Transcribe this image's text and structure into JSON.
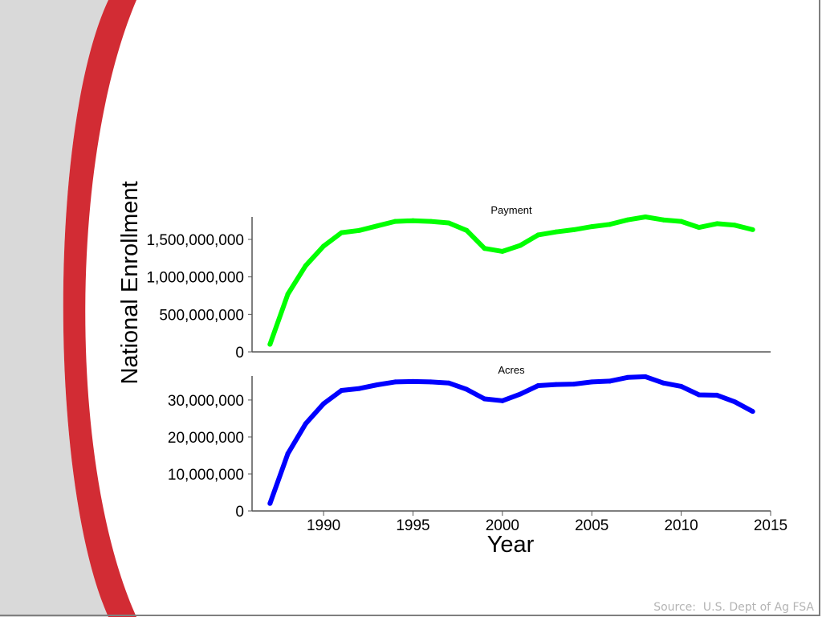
{
  "theme": {
    "gray_band": "#d9d9d9",
    "red_swoosh": "#d22c34",
    "payment_color": "#00ff00",
    "acres_color": "#0000ff"
  },
  "source_text": "Source:  U.S. Dept of Ag FSA",
  "chart_data": {
    "type": "line",
    "xlabel": "Year",
    "ylabel": "National Enrollment",
    "x_ticks": [
      1990,
      1995,
      2000,
      2005,
      2010,
      2015
    ],
    "xlim": [
      1986,
      2015
    ],
    "panels": [
      {
        "title": "Payment",
        "color": "#00ff00",
        "ylim": [
          0,
          1800000000
        ],
        "y_ticks": [
          0,
          500000000,
          1000000000,
          1500000000
        ],
        "y_tick_labels": [
          "0",
          "500,000,000",
          "1,000,000,000",
          "1,500,000,000"
        ],
        "x": [
          1987,
          1988,
          1989,
          1990,
          1991,
          1992,
          1993,
          1994,
          1995,
          1996,
          1997,
          1998,
          1999,
          2000,
          2001,
          2002,
          2003,
          2004,
          2005,
          2006,
          2007,
          2008,
          2009,
          2010,
          2011,
          2012,
          2013,
          2014
        ],
        "values": [
          100000000,
          770000000,
          1150000000,
          1410000000,
          1590000000,
          1620000000,
          1680000000,
          1740000000,
          1750000000,
          1740000000,
          1720000000,
          1620000000,
          1380000000,
          1340000000,
          1420000000,
          1560000000,
          1600000000,
          1630000000,
          1670000000,
          1700000000,
          1760000000,
          1800000000,
          1760000000,
          1740000000,
          1660000000,
          1710000000,
          1690000000,
          1630000000
        ]
      },
      {
        "title": "Acres",
        "color": "#0000ff",
        "ylim": [
          0,
          36500000
        ],
        "y_ticks": [
          0,
          10000000,
          20000000,
          30000000
        ],
        "y_tick_labels": [
          "0",
          "10,000,000",
          "20,000,000",
          "30,000,000"
        ],
        "x": [
          1987,
          1988,
          1989,
          1990,
          1991,
          1992,
          1993,
          1994,
          1995,
          1996,
          1997,
          1998,
          1999,
          2000,
          2001,
          2002,
          2003,
          2004,
          2005,
          2006,
          2007,
          2008,
          2009,
          2010,
          2011,
          2012,
          2013,
          2014
        ],
        "values": [
          2000000,
          15500000,
          23600000,
          29000000,
          32600000,
          33100000,
          34100000,
          34900000,
          35000000,
          34900000,
          34600000,
          32900000,
          30300000,
          29800000,
          31600000,
          33900000,
          34200000,
          34300000,
          34900000,
          35100000,
          36100000,
          36300000,
          34600000,
          33700000,
          31400000,
          31300000,
          29500000,
          26900000
        ]
      }
    ]
  }
}
